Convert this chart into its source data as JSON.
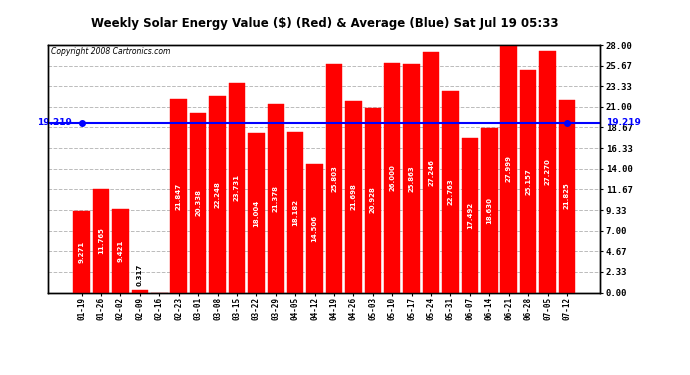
{
  "title": "Weekly Solar Energy Value ($) (Red) & Average (Blue) Sat Jul 19 05:33",
  "copyright": "Copyright 2008 Cartronics.com",
  "bar_color": "#FF0000",
  "background_color": "#FFFFFF",
  "plot_bg_color": "#FFFFFF",
  "average_line_color": "#0000FF",
  "average_value": 19.219,
  "ylim": [
    0.0,
    28.0
  ],
  "yticks": [
    0.0,
    2.33,
    4.67,
    7.0,
    9.33,
    11.67,
    14.0,
    16.33,
    18.67,
    21.0,
    23.33,
    25.67,
    28.0
  ],
  "categories": [
    "01-19",
    "01-26",
    "02-02",
    "02-09",
    "02-16",
    "02-23",
    "03-01",
    "03-08",
    "03-15",
    "03-22",
    "03-29",
    "04-05",
    "04-12",
    "04-19",
    "04-26",
    "05-03",
    "05-10",
    "05-17",
    "05-24",
    "05-31",
    "06-07",
    "06-14",
    "06-21",
    "06-28",
    "07-05",
    "07-12"
  ],
  "values": [
    9.271,
    11.765,
    9.421,
    0.317,
    0.0,
    21.847,
    20.338,
    22.248,
    23.731,
    18.004,
    21.378,
    18.182,
    14.506,
    25.803,
    21.698,
    20.928,
    26.0,
    25.863,
    27.246,
    22.763,
    17.492,
    18.63,
    27.999,
    25.157,
    27.27,
    21.825
  ],
  "grid_color": "#BBBBBB",
  "grid_style": "--",
  "left_label": "19.219",
  "right_label": "19.219"
}
